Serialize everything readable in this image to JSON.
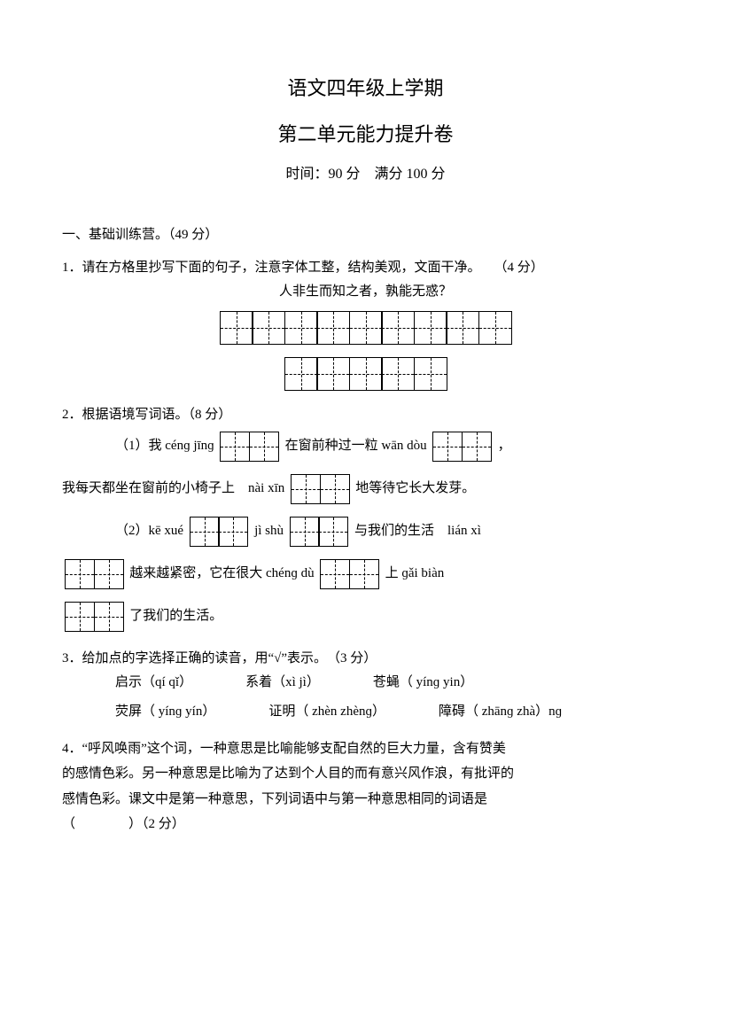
{
  "header": {
    "line1": "语文四年级上学期",
    "line2": "第二单元能力提升卷",
    "meta": "时间：90 分　满分 100 分"
  },
  "section1": {
    "heading": "一、基础训练营。（49 分）",
    "q1": {
      "prompt": "1．请在方格里抄写下面的句子，注意字体工整，结构美观，文面干净。　　（4 分）",
      "sentence": "人非生而知之者，孰能无惑？",
      "row1_cells": 9,
      "row2_cells": 5
    },
    "q2": {
      "prompt": "2．根据语境写词语。（8 分）",
      "p1_a": "（1）我 cénɡ jīnɡ",
      "p1_b": "在窗前种过一粒 wān dòu",
      "p1_c": "，",
      "p2_a": "我每天都坐在窗前的小椅子上　nài xīn",
      "p2_b": "地等待它长大发芽。",
      "p3_a": "（2）kē xué",
      "p3_b": "jì shù",
      "p3_c": "与我们的生活　lián xì",
      "p4_a": "越来越紧密，它在很大 chénɡ dù",
      "p4_b": "上 ɡǎi biàn",
      "p5_a": "了我们的生活。"
    },
    "q3": {
      "prompt": "3．给加点的字选择正确的读音，用“√”表示。　（3 分）",
      "row1": {
        "a": "启示（qí  qǐ）",
        "b": "系着（xì  jì）",
        "c": "苍蝇（ yínɡ yin）"
      },
      "row2": {
        "a": "荧屏（ yínɡ yín）",
        "b": "证明（ zhèn zhènɡ）",
        "c": "障碍（ zhānɡ zhà）nɡ"
      }
    },
    "q4": {
      "line1": "4．“呼风唤雨”这个词，一种意思是比喻能够支配自然的巨大力量，含有赞美",
      "line2": "的感情色彩。另一种意思是比喻为了达到个人目的而有意兴风作浪，有批评的",
      "line3": "感情色彩。课文中是第一种意思，下列词语中与第一种意思相同的词语是",
      "line4": "（　　　　）（2 分）"
    }
  }
}
